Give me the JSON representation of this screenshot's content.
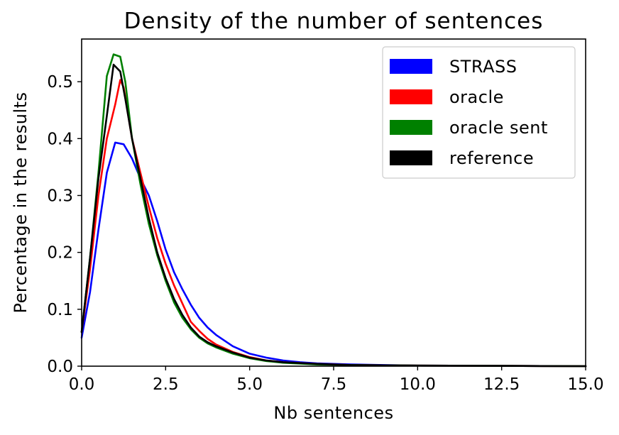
{
  "chart_data": {
    "type": "line",
    "title": "Density of the number of sentences",
    "xlabel": "Nb sentences",
    "ylabel": "Percentage in the results",
    "xlim": [
      0,
      15
    ],
    "ylim": [
      0,
      0.575
    ],
    "xticks": [
      0,
      2.5,
      5,
      7.5,
      10,
      12.5,
      15
    ],
    "xtick_labels": [
      "0.0",
      "2.5",
      "5.0",
      "7.5",
      "10.0",
      "12.5",
      "15.0"
    ],
    "yticks": [
      0,
      0.1,
      0.2,
      0.3,
      0.4,
      0.5
    ],
    "ytick_labels": [
      "0.0",
      "0.1",
      "0.2",
      "0.3",
      "0.4",
      "0.5"
    ],
    "grid": false,
    "legend_position": "top-right",
    "series": [
      {
        "name": "STRASS",
        "color": "#0000ff",
        "x": [
          0,
          0.25,
          0.5,
          0.75,
          1.0,
          1.25,
          1.5,
          1.75,
          2.0,
          2.25,
          2.5,
          2.75,
          3.0,
          3.25,
          3.5,
          3.75,
          4.0,
          4.5,
          5.0,
          5.5,
          6.0,
          6.5,
          7.0,
          8.0,
          9.0,
          10.0,
          12.5,
          15.0
        ],
        "y": [
          0.05,
          0.13,
          0.24,
          0.34,
          0.393,
          0.39,
          0.365,
          0.33,
          0.3,
          0.255,
          0.205,
          0.165,
          0.135,
          0.108,
          0.085,
          0.068,
          0.055,
          0.035,
          0.022,
          0.015,
          0.01,
          0.007,
          0.005,
          0.003,
          0.002,
          0.001,
          0.0005,
          0.0
        ]
      },
      {
        "name": "oracle",
        "color": "#ff0000",
        "x": [
          0,
          0.25,
          0.5,
          0.75,
          1.0,
          1.15,
          1.25,
          1.5,
          1.75,
          2.0,
          2.25,
          2.5,
          2.75,
          3.0,
          3.25,
          3.5,
          3.75,
          4.0,
          4.5,
          5.0,
          5.5,
          6.0,
          7.0,
          8.0,
          10.0,
          12.5,
          15.0
        ],
        "y": [
          0.06,
          0.17,
          0.3,
          0.4,
          0.46,
          0.503,
          0.49,
          0.4,
          0.34,
          0.28,
          0.225,
          0.18,
          0.142,
          0.11,
          0.078,
          0.062,
          0.048,
          0.038,
          0.025,
          0.016,
          0.01,
          0.007,
          0.004,
          0.002,
          0.001,
          0.0005,
          0.0
        ]
      },
      {
        "name": "oracle sent",
        "color": "#008000",
        "x": [
          0,
          0.25,
          0.5,
          0.75,
          0.95,
          1.15,
          1.3,
          1.5,
          1.75,
          2.0,
          2.25,
          2.5,
          2.75,
          3.0,
          3.25,
          3.5,
          3.75,
          4.0,
          4.5,
          5.0,
          5.5,
          6.0,
          7.0,
          8.0,
          10.0,
          12.5,
          15.0
        ],
        "y": [
          0.06,
          0.19,
          0.34,
          0.51,
          0.548,
          0.544,
          0.5,
          0.4,
          0.32,
          0.25,
          0.195,
          0.15,
          0.112,
          0.085,
          0.065,
          0.05,
          0.04,
          0.033,
          0.022,
          0.014,
          0.009,
          0.006,
          0.003,
          0.002,
          0.001,
          0.0005,
          0.0
        ]
      },
      {
        "name": "reference",
        "color": "#000000",
        "x": [
          0,
          0.25,
          0.5,
          0.75,
          0.95,
          1.15,
          1.3,
          1.5,
          1.75,
          2.0,
          2.25,
          2.5,
          2.75,
          3.0,
          3.25,
          3.5,
          3.75,
          4.0,
          4.5,
          5.0,
          5.5,
          6.0,
          7.0,
          8.0,
          10.0,
          12.5,
          15.0
        ],
        "y": [
          0.06,
          0.19,
          0.33,
          0.44,
          0.53,
          0.518,
          0.47,
          0.4,
          0.33,
          0.26,
          0.2,
          0.155,
          0.118,
          0.09,
          0.068,
          0.052,
          0.042,
          0.035,
          0.024,
          0.015,
          0.01,
          0.007,
          0.004,
          0.002,
          0.001,
          0.0005,
          0.0
        ]
      }
    ]
  }
}
